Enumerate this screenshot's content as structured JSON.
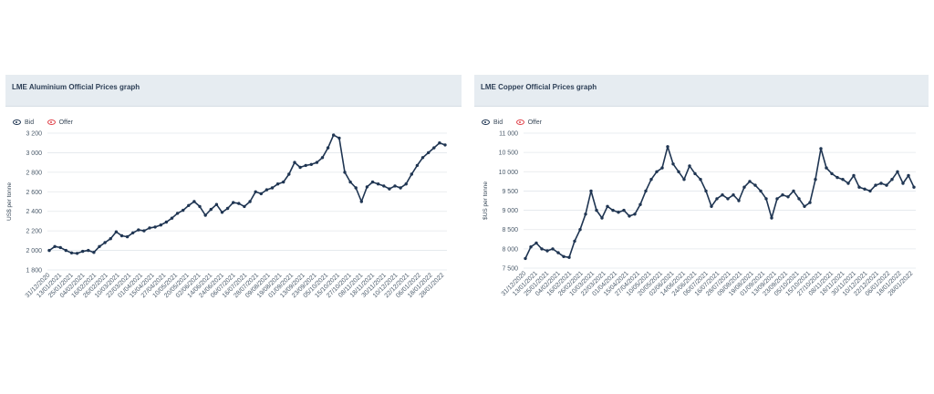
{
  "colors": {
    "bid": "#1f3552",
    "offer": "#e0434b",
    "grid": "#e3e7eb",
    "header_bg": "#e6ecf1"
  },
  "legend": {
    "bid_label": "Bid",
    "offer_label": "Offer",
    "bid_icon": "eye-icon",
    "offer_icon": "eye-icon"
  },
  "chart_data": [
    {
      "type": "line",
      "title": "LME Aluminium Official Prices graph",
      "ylabel": "US$ per tonne",
      "ylim": [
        1800,
        3200
      ],
      "yticks": [
        1800,
        2000,
        2200,
        2400,
        2600,
        2800,
        3000,
        3200
      ],
      "ytick_labels": [
        "1 800",
        "2 000",
        "2 200",
        "2 400",
        "2 600",
        "2 800",
        "3 000",
        "3 200"
      ],
      "xtick_labels": [
        "31/12/2020",
        "13/01/2021",
        "25/01/2021",
        "04/02/2021",
        "16/02/2021",
        "26/02/2021",
        "10/03/2021",
        "22/03/2021",
        "01/04/2021",
        "15/04/2021",
        "27/04/2021",
        "10/05/2021",
        "20/05/2021",
        "02/06/2021",
        "14/06/2021",
        "24/06/2021",
        "06/07/2021",
        "16/07/2021",
        "28/07/2021",
        "09/08/2021",
        "19/08/2021",
        "01/09/2021",
        "13/09/2021",
        "23/09/2021",
        "05/10/2021",
        "15/10/2021",
        "27/10/2021",
        "08/11/2021",
        "18/11/2021",
        "30/11/2021",
        "10/12/2021",
        "22/12/2021",
        "06/01/2022",
        "18/01/2022",
        "28/01/2022"
      ],
      "grid": true,
      "legend_placement": "top-left",
      "series": [
        {
          "name": "Bid",
          "values": [
            2000,
            2040,
            2030,
            2000,
            1975,
            1970,
            1990,
            2000,
            1980,
            2040,
            2080,
            2120,
            2190,
            2150,
            2140,
            2180,
            2210,
            2200,
            2230,
            2240,
            2260,
            2290,
            2330,
            2380,
            2410,
            2460,
            2500,
            2450,
            2360,
            2420,
            2470,
            2390,
            2430,
            2490,
            2480,
            2450,
            2500,
            2600,
            2580,
            2620,
            2640,
            2680,
            2700,
            2780,
            2900,
            2850,
            2870,
            2880,
            2900,
            2950,
            3050,
            3180,
            3150,
            2800,
            2700,
            2640,
            2500,
            2650,
            2700,
            2680,
            2660,
            2630,
            2660,
            2640,
            2680,
            2780,
            2870,
            2950,
            3000,
            3050,
            3100,
            3080
          ]
        }
      ]
    },
    {
      "type": "line",
      "title": "LME Copper Official Prices graph",
      "ylabel": "$US per tonne",
      "ylim": [
        7500,
        11000
      ],
      "yticks": [
        7500,
        8000,
        8500,
        9000,
        9500,
        10000,
        10500,
        11000
      ],
      "ytick_labels": [
        "7 500",
        "8 000",
        "8 500",
        "9 000",
        "9 500",
        "10 000",
        "10 500",
        "11 000"
      ],
      "xtick_labels": [
        "31/12/2020",
        "13/01/2021",
        "25/01/2021",
        "04/02/2021",
        "16/02/2021",
        "26/02/2021",
        "10/03/2021",
        "22/03/2021",
        "01/04/2021",
        "15/04/2021",
        "27/04/2021",
        "10/05/2021",
        "20/05/2021",
        "02/06/2021",
        "14/06/2021",
        "24/06/2021",
        "06/07/2021",
        "16/07/2021",
        "28/07/2021",
        "09/08/2021",
        "19/08/2021",
        "01/09/2021",
        "13/09/2021",
        "23/09/2021",
        "05/10/2021",
        "15/10/2021",
        "27/10/2021",
        "08/11/2021",
        "18/11/2021",
        "30/11/2021",
        "10/12/2021",
        "22/12/2021",
        "06/01/2022",
        "18/01/2022",
        "28/01/2022"
      ],
      "grid": true,
      "legend_placement": "top-left",
      "series": [
        {
          "name": "Bid",
          "values": [
            7750,
            8050,
            8150,
            8000,
            7950,
            8000,
            7900,
            7800,
            7780,
            8200,
            8500,
            8900,
            9500,
            9000,
            8800,
            9100,
            9000,
            8950,
            9000,
            8850,
            8900,
            9150,
            9500,
            9800,
            10000,
            10100,
            10650,
            10200,
            10000,
            9800,
            10150,
            9950,
            9800,
            9500,
            9100,
            9300,
            9400,
            9300,
            9400,
            9250,
            9600,
            9750,
            9650,
            9500,
            9300,
            8800,
            9300,
            9400,
            9350,
            9500,
            9300,
            9100,
            9200,
            9800,
            10600,
            10100,
            9950,
            9850,
            9800,
            9700,
            9900,
            9600,
            9550,
            9500,
            9650,
            9700,
            9650,
            9800,
            10000,
            9700,
            9900,
            9600
          ]
        }
      ]
    }
  ]
}
